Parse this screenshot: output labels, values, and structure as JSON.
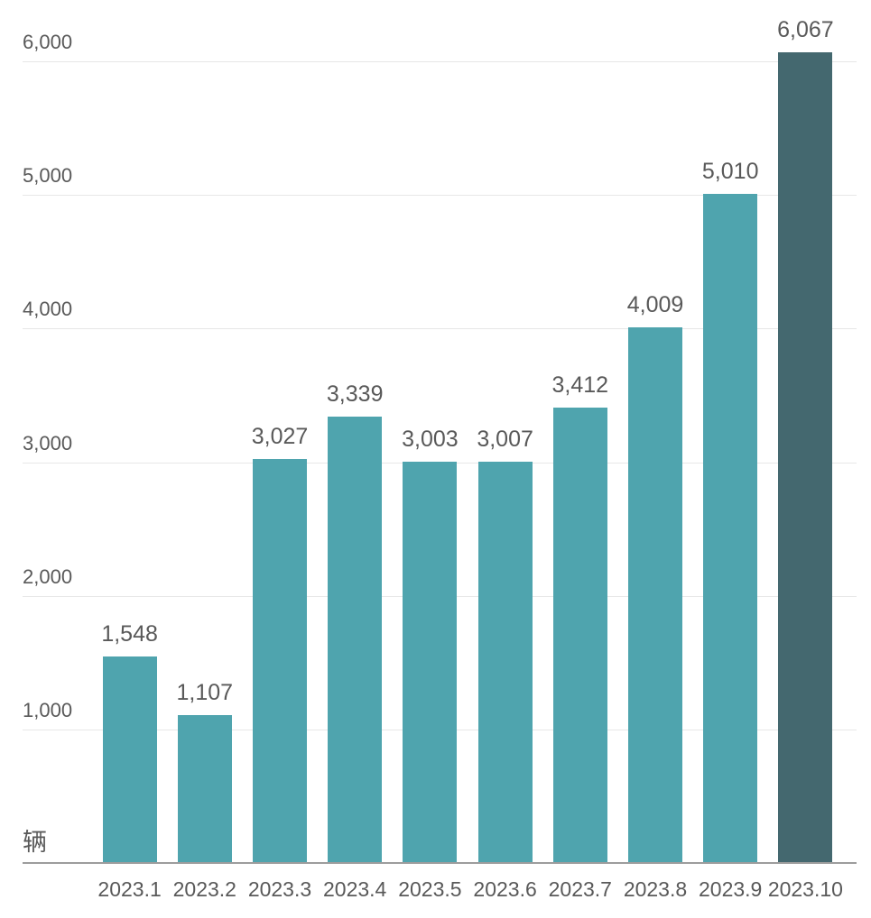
{
  "chart_data": {
    "type": "bar",
    "title": "",
    "unit": "辆",
    "categories": [
      "2023.1",
      "2023.2",
      "2023.3",
      "2023.4",
      "2023.5",
      "2023.6",
      "2023.7",
      "2023.8",
      "2023.9",
      "2023.10"
    ],
    "values": [
      1548,
      1107,
      3027,
      3339,
      3003,
      3007,
      3412,
      4009,
      5010,
      6067
    ],
    "value_labels": [
      "1,548",
      "1,107",
      "3,027",
      "3,339",
      "3,003",
      "3,007",
      "3,412",
      "4,009",
      "5,010",
      "6,067"
    ],
    "highlight_index": 9,
    "xlabel": "",
    "ylabel": "",
    "ylim": [
      0,
      6000
    ],
    "yticks": [
      {
        "value": 1000,
        "label": "1,000"
      },
      {
        "value": 2000,
        "label": "2,000"
      },
      {
        "value": 3000,
        "label": "3,000"
      },
      {
        "value": 4000,
        "label": "4,000"
      },
      {
        "value": 5000,
        "label": "5,000"
      },
      {
        "value": 6000,
        "label": "6,000"
      }
    ],
    "grid": true,
    "legend": "none",
    "colors": {
      "bar": "#4FA4AE",
      "bar_highlight": "#44686F",
      "gridline": "#E7E7E7",
      "axis_line": "#9D9D9D",
      "text": "#595959",
      "background": "#FFFFFF"
    }
  }
}
